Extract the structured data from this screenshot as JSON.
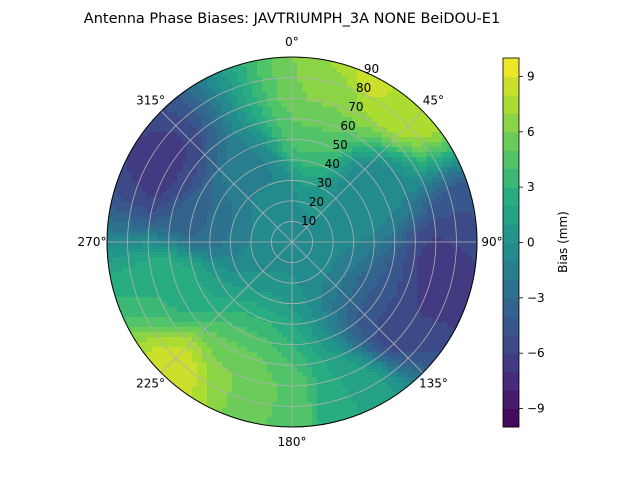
{
  "chart_data": {
    "type": "heatmap",
    "projection": "polar",
    "title": "Antenna Phase Biases: JAVTRIUMPH_3A   NONE BeiDOU-E1",
    "theta_direction": "clockwise",
    "theta_zero": "top",
    "angle_tick_labels": [
      "0°",
      "45°",
      "90°",
      "135°",
      "180°",
      "225°",
      "270°",
      "315°"
    ],
    "angle_ticks_deg": [
      0,
      45,
      90,
      135,
      180,
      225,
      270,
      315
    ],
    "radial_tick_labels": [
      "10",
      "20",
      "30",
      "40",
      "50",
      "60",
      "70",
      "80",
      "90"
    ],
    "radial_ticks": [
      10,
      20,
      30,
      40,
      50,
      60,
      70,
      80,
      90
    ],
    "radial_range": [
      0,
      90
    ],
    "radial_label_angle_deg": 22.5,
    "grid": true,
    "colormap": "viridis",
    "color_range": [
      -10,
      10
    ],
    "color_levels": 21,
    "colorbar": {
      "label": "Bias (mm)",
      "tick_values": [
        -9,
        -6,
        -3,
        0,
        3,
        6,
        9
      ],
      "tick_labels": [
        "−9",
        "−6",
        "−3",
        "0",
        "3",
        "6",
        "9"
      ],
      "placement": "right"
    },
    "features": [
      {
        "azimuth": 25,
        "zenith": 85,
        "value": 8.5
      },
      {
        "azimuth": 40,
        "zenith": 88,
        "value": 8
      },
      {
        "azimuth": 10,
        "zenith": 50,
        "value": 6
      },
      {
        "azimuth": 20,
        "zenith": 75,
        "value": 6
      },
      {
        "azimuth": 300,
        "zenith": 68,
        "value": -6.5
      },
      {
        "azimuth": 285,
        "zenith": 45,
        "value": -4.5
      },
      {
        "azimuth": 100,
        "zenith": 75,
        "value": -7
      },
      {
        "azimuth": 125,
        "zenith": 60,
        "value": -6
      },
      {
        "azimuth": 85,
        "zenith": 88,
        "value": -5
      },
      {
        "azimuth": 222,
        "zenith": 85,
        "value": 8.5
      },
      {
        "azimuth": 205,
        "zenith": 68,
        "value": 6
      },
      {
        "azimuth": 185,
        "zenith": 80,
        "value": 5
      },
      {
        "azimuth": 250,
        "zenith": 60,
        "value": 3
      },
      {
        "azimuth": 160,
        "zenith": 82,
        "value": 2
      },
      {
        "azimuth": 55,
        "zenith": 45,
        "value": -1
      },
      {
        "azimuth": 330,
        "zenith": 35,
        "value": -2
      }
    ]
  }
}
